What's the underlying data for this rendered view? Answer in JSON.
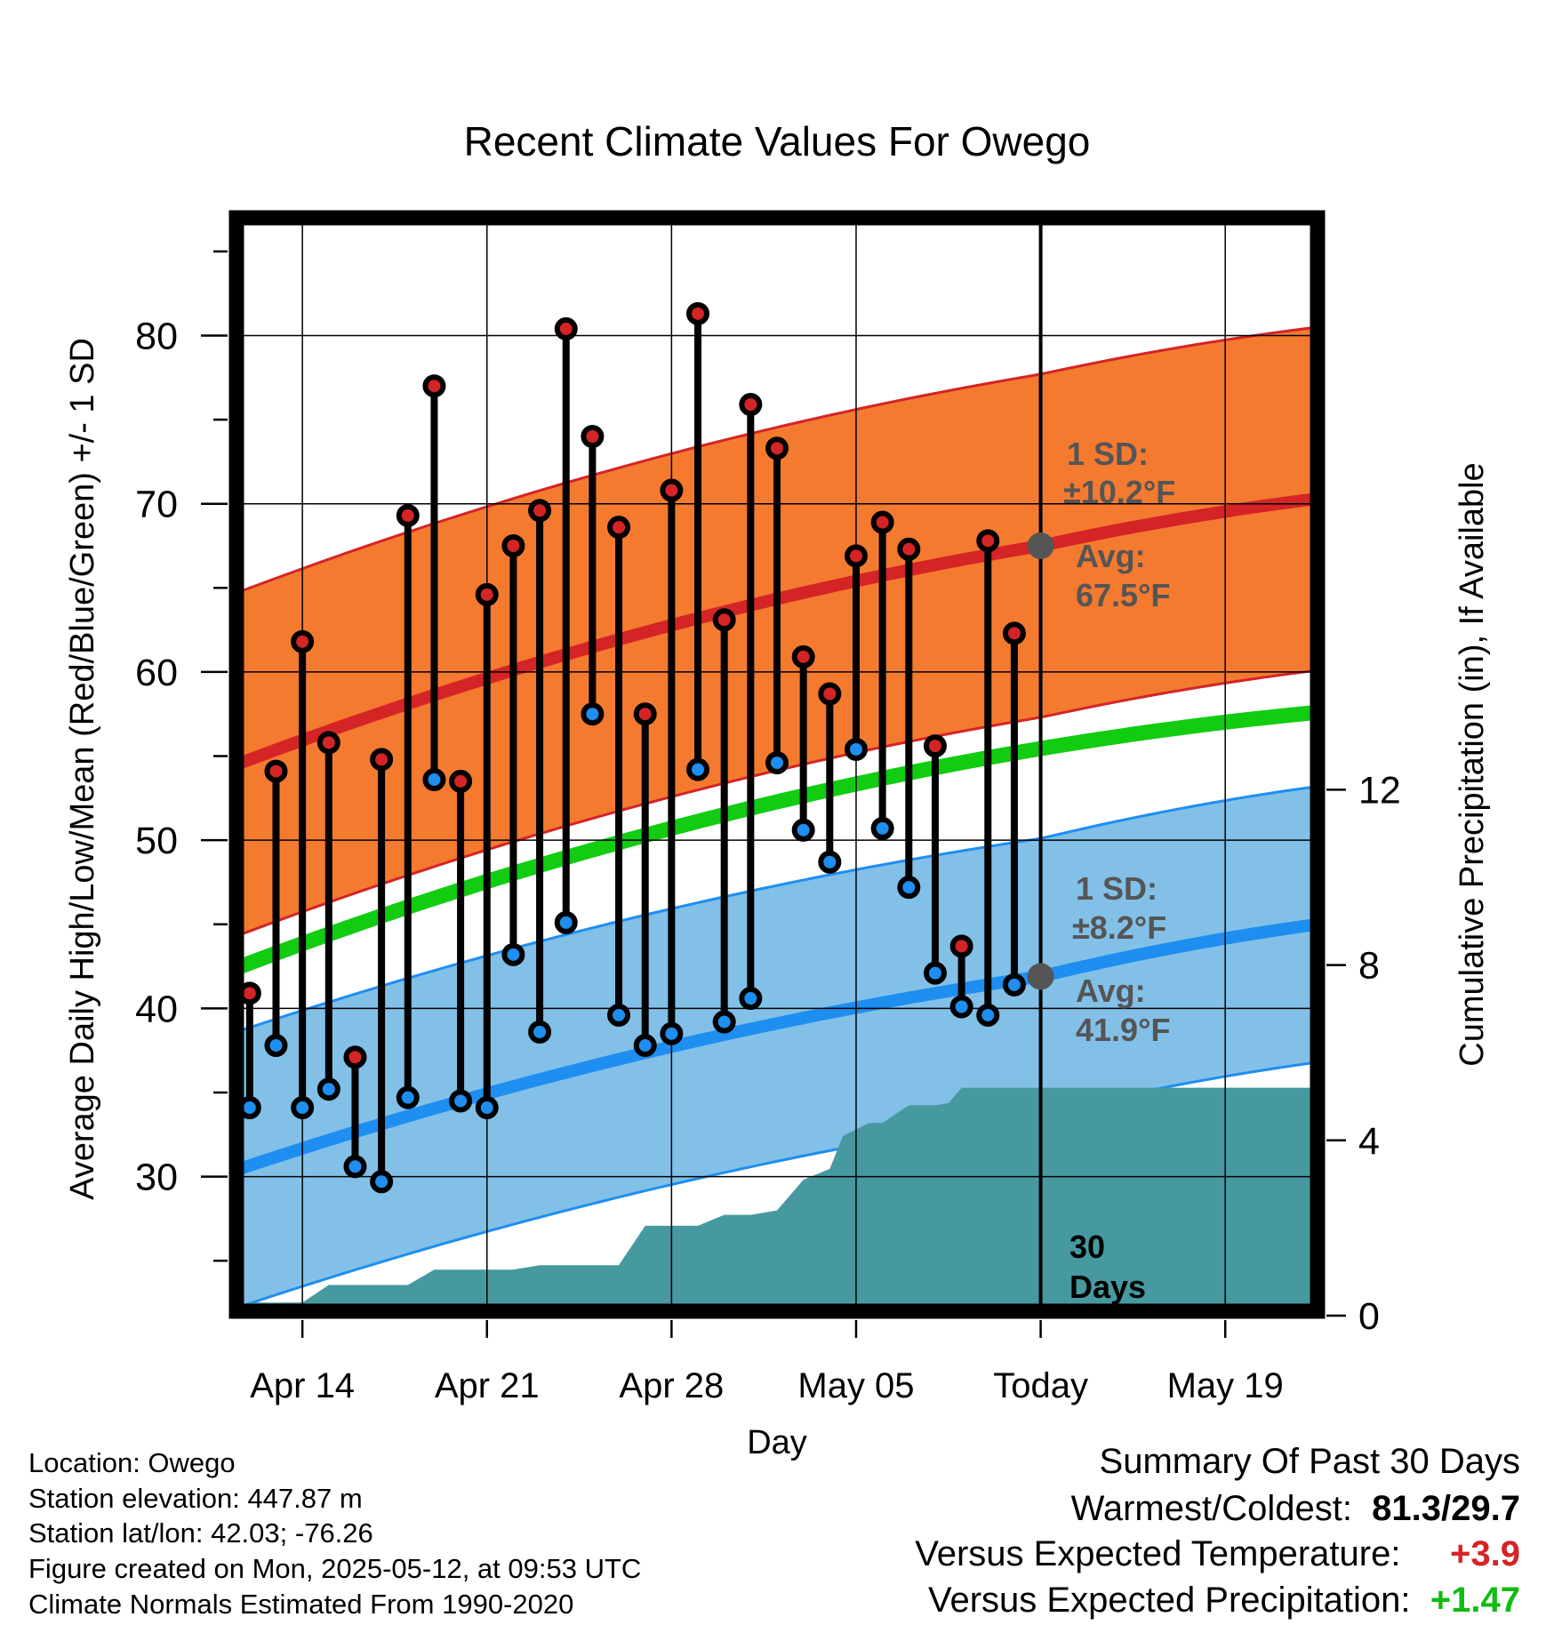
{
  "chart_data": {
    "type": "line",
    "title": "Recent Climate Values For Owego",
    "xlabel": "Day",
    "ylabel_left": "Average Daily High/Low/Mean (Red/Blue/Green) +/- 1 SD",
    "ylabel_right": "Cumulative Precipitation (in), If Available",
    "x_tick_labels": [
      "Apr 14",
      "Apr 21",
      "Apr 28",
      "May 05",
      "Today",
      "May 19"
    ],
    "y_left_ticks": [
      30,
      40,
      50,
      60,
      70,
      80
    ],
    "y_left_range": [
      22,
      87
    ],
    "y_right_ticks": [
      0,
      4,
      8,
      12
    ],
    "x_range_days_from_apr11": [
      0.5,
      41.5
    ],
    "today_day": 31,
    "grid": true,
    "days": [
      "Apr 12",
      "Apr 13",
      "Apr 14",
      "Apr 15",
      "Apr 16",
      "Apr 17",
      "Apr 18",
      "Apr 19",
      "Apr 20",
      "Apr 21",
      "Apr 22",
      "Apr 23",
      "Apr 24",
      "Apr 25",
      "Apr 26",
      "Apr 27",
      "Apr 28",
      "Apr 29",
      "Apr 30",
      "May 01",
      "May 02",
      "May 03",
      "May 04",
      "May 05",
      "May 06",
      "May 07",
      "May 08",
      "May 09",
      "May 10",
      "May 11"
    ],
    "daily_high": [
      40.9,
      54.1,
      61.8,
      55.8,
      37.1,
      54.8,
      69.3,
      77.0,
      53.5,
      64.6,
      67.5,
      69.6,
      80.4,
      74.0,
      68.6,
      57.5,
      70.8,
      81.3,
      63.1,
      75.9,
      73.3,
      60.9,
      58.7,
      66.9,
      68.9,
      67.3,
      55.6,
      43.7,
      67.8,
      62.3
    ],
    "daily_low": [
      34.1,
      37.8,
      34.1,
      35.2,
      30.6,
      29.7,
      34.7,
      53.6,
      34.5,
      34.1,
      43.2,
      38.6,
      45.1,
      57.5,
      39.6,
      37.8,
      38.5,
      54.2,
      39.2,
      40.6,
      54.6,
      50.6,
      48.7,
      55.4,
      50.7,
      47.2,
      42.1,
      40.1,
      39.6,
      41.4
    ],
    "normal_high": {
      "start": 54.5,
      "today": 67.5,
      "end": 70.3,
      "sd": 10.2
    },
    "normal_low": {
      "start": 30.4,
      "today": 41.9,
      "end": 45.0,
      "sd": 8.2
    },
    "normal_mean": {
      "start": 42.4,
      "end": 57.6
    },
    "cumulative_precip": [
      {
        "day": 0.5,
        "in": 0.0
      },
      {
        "day": 1.0,
        "in": 0.3
      },
      {
        "day": 3.0,
        "in": 0.3
      },
      {
        "day": 4.0,
        "in": 0.7
      },
      {
        "day": 7.0,
        "in": 0.7
      },
      {
        "day": 8.0,
        "in": 1.05
      },
      {
        "day": 11.0,
        "in": 1.05
      },
      {
        "day": 12.0,
        "in": 1.15
      },
      {
        "day": 15.0,
        "in": 1.15
      },
      {
        "day": 16.0,
        "in": 2.05
      },
      {
        "day": 18.0,
        "in": 2.05
      },
      {
        "day": 19.0,
        "in": 2.3
      },
      {
        "day": 20.0,
        "in": 2.3
      },
      {
        "day": 21.0,
        "in": 2.4
      },
      {
        "day": 22.0,
        "in": 3.1
      },
      {
        "day": 23.0,
        "in": 3.35
      },
      {
        "day": 23.5,
        "in": 4.1
      },
      {
        "day": 24.5,
        "in": 4.4
      },
      {
        "day": 25.0,
        "in": 4.4
      },
      {
        "day": 26.0,
        "in": 4.8
      },
      {
        "day": 27.0,
        "in": 4.8
      },
      {
        "day": 27.5,
        "in": 4.85
      },
      {
        "day": 28.0,
        "in": 5.2
      },
      {
        "day": 41.5,
        "in": 5.2
      }
    ],
    "annotations": {
      "high_sd_label": "1 SD:",
      "high_sd_value": "±10.2°F",
      "high_avg_label": "Avg:",
      "high_avg_value": "67.5°F",
      "low_sd_label": "1 SD:",
      "low_sd_value": "±8.2°F",
      "low_avg_label": "Avg:",
      "low_avg_value": "41.9°F",
      "days_label_1": "30",
      "days_label_2": "Days"
    },
    "colors": {
      "high_band": "#f47a30",
      "high_line": "#d42426",
      "low_band": "#82c0e8",
      "low_line": "#1e8ef0",
      "mean_line": "#11cc11",
      "precip": "#4799a0",
      "high_dot": "#d42426",
      "low_dot": "#1e8ef0",
      "annotation": "#555555"
    }
  },
  "info": {
    "location": "Location: Owego",
    "elevation": "Station elevation: 447.87 m",
    "latlon": "Station lat/lon: 42.03; -76.26",
    "created": "Figure created on Mon, 2025-05-12, at 09:53 UTC",
    "normals": "Climate Normals Estimated From 1990-2020"
  },
  "summary": {
    "title": "Summary Of Past 30 Days",
    "warmest_label": "Warmest/Coldest:",
    "warmest_value": "81.3/29.7",
    "temp_label": "Versus Expected Temperature:",
    "temp_value": "+3.9",
    "temp_color": "#d42426",
    "precip_label": "Versus Expected Precipitation:",
    "precip_value": "+1.47",
    "precip_color": "#11bb11"
  }
}
